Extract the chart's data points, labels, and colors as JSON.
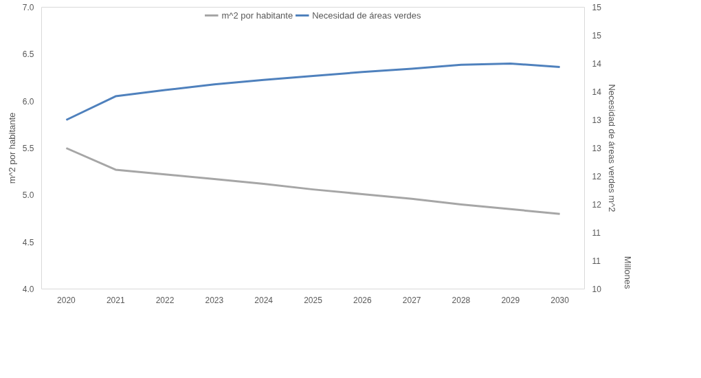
{
  "chart_data": {
    "type": "line",
    "ylabel": "m^2 por habitante",
    "y2label": "Necesidad de áreas verdes m^2",
    "annotations": [
      "Millones"
    ],
    "categories": [
      "2020",
      "2021",
      "2022",
      "2023",
      "2024",
      "2025",
      "2026",
      "2027",
      "2028",
      "2029",
      "2030"
    ],
    "ylim": [
      4.0,
      7.0
    ],
    "yticks": [
      {
        "value": 4.0,
        "label": "4.0"
      },
      {
        "value": 4.5,
        "label": "4.5"
      },
      {
        "value": 5.0,
        "label": "5.0"
      },
      {
        "value": 5.5,
        "label": "5.5"
      },
      {
        "value": 6.0,
        "label": "6.0"
      },
      {
        "value": 6.5,
        "label": "6.5"
      },
      {
        "value": 7.0,
        "label": "7.0"
      }
    ],
    "y2lim": [
      10,
      15
    ],
    "y2ticks": [
      10,
      {
        "value": 10.5,
        "label": "11"
      },
      11,
      {
        "value": 11.5,
        "label": "12"
      },
      12,
      {
        "value": 12.5,
        "label": "13"
      },
      13,
      {
        "value": 13.5,
        "label": "14"
      },
      14,
      {
        "value": 14.5,
        "label": "15"
      },
      15
    ],
    "series": [
      {
        "name": "m^2 por habitante",
        "color": "#a6a6a6",
        "values": [
          5.5,
          5.27,
          5.22,
          5.17,
          5.12,
          5.06,
          5.01,
          4.96,
          4.9,
          4.85,
          4.8
        ]
      },
      {
        "name": "Necesidad de áreas verdes",
        "color": "#4f81bd",
        "axis": "y2",
        "values": [
          13.0,
          13.42,
          13.53,
          13.63,
          13.71,
          13.78,
          13.85,
          13.91,
          13.98,
          14.0,
          13.94
        ]
      }
    ],
    "legend": "top",
    "grid": false,
    "marker": "none",
    "line_style": "solid"
  }
}
